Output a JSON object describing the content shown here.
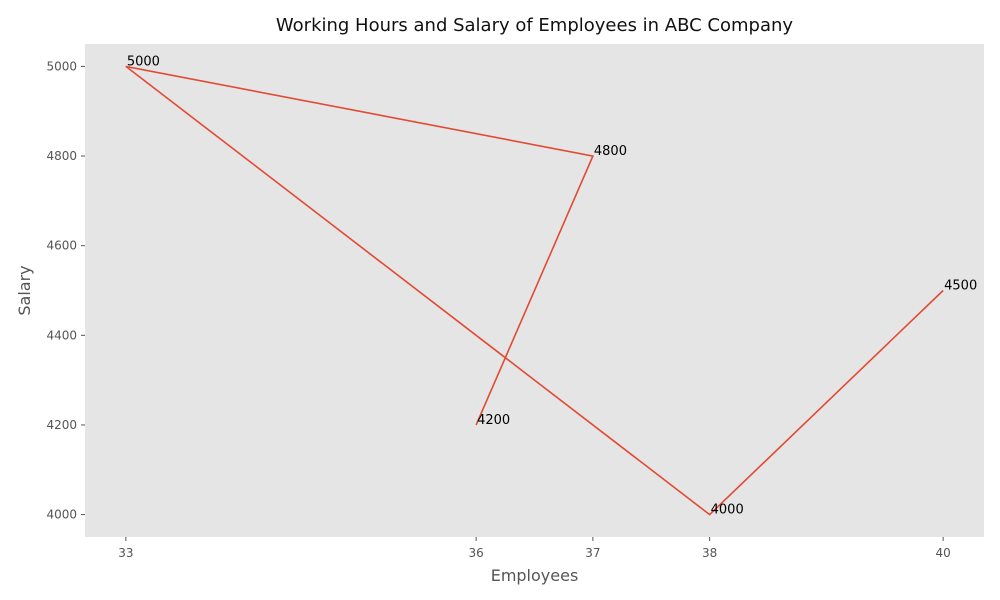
{
  "chart_data": {
    "type": "line",
    "title": "Working Hours and Salary of Employees in ABC Company",
    "xlabel": "Employees",
    "ylabel": "Salary",
    "x": [
      40,
      38,
      33,
      37,
      36
    ],
    "y": [
      4500,
      4000,
      5000,
      4800,
      4200
    ],
    "data_labels": [
      "4500",
      "4000",
      "5000",
      "4800",
      "4200"
    ],
    "xticks": [
      33,
      36,
      37,
      38,
      40
    ],
    "xtick_labels": [
      "33",
      "36",
      "37",
      "38",
      "40"
    ],
    "yticks": [
      4000,
      4200,
      4400,
      4600,
      4800,
      5000
    ],
    "ytick_labels": [
      "4000",
      "4200",
      "4400",
      "4600",
      "4800",
      "5000"
    ],
    "xlim": [
      32.65,
      40.35
    ],
    "ylim": [
      3950,
      5050
    ],
    "grid": false,
    "style": "ggplot",
    "colors": {
      "line": "#E24A33",
      "plot_bg": "#E5E5E5",
      "page_bg": "#FFFFFF"
    }
  }
}
